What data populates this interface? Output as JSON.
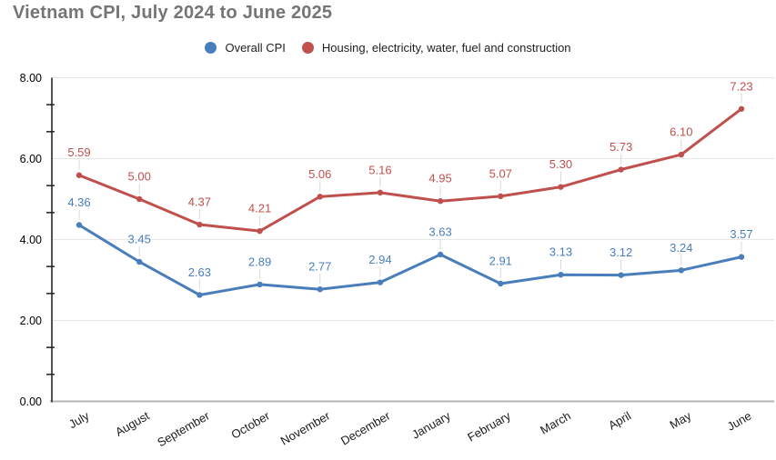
{
  "chart_data": {
    "type": "line",
    "title": "Vietnam CPI, July 2024 to June 2025",
    "categories": [
      "July",
      "August",
      "September",
      "October",
      "November",
      "December",
      "January",
      "February",
      "March",
      "April",
      "May",
      "June"
    ],
    "series": [
      {
        "name": "Overall CPI",
        "color": "#4a7ebb",
        "values": [
          4.36,
          3.45,
          2.63,
          2.89,
          2.77,
          2.94,
          3.63,
          2.91,
          3.13,
          3.12,
          3.24,
          3.57
        ]
      },
      {
        "name": "Housing, electricity, water, fuel and construction",
        "color": "#c0504d",
        "values": [
          5.59,
          5.0,
          4.37,
          4.21,
          5.06,
          5.16,
          4.95,
          5.07,
          5.3,
          5.73,
          6.1,
          7.23
        ]
      }
    ],
    "xlabel": "",
    "ylabel": "",
    "ylim": [
      0,
      8
    ],
    "y_major_step": 2,
    "y_minor_ticks_between_majors": 2,
    "y_tick_labels": [
      "0.00",
      "2.00",
      "4.00",
      "6.00",
      "8.00"
    ],
    "value_label_format": "0.00",
    "data_labels": true,
    "grid": "horizontal-major",
    "legend_position": "top-center",
    "x_label_rotation_deg": -30
  },
  "colors": {
    "title": "#757575",
    "gridline": "#e6e6e6",
    "x_axis_line": "#b5b5b5",
    "y_axis_line": "#1a1a1a",
    "tick": "#212121",
    "axis_text": "#000000",
    "leader_line": "#d9d9d9",
    "background": "#ffffff"
  }
}
